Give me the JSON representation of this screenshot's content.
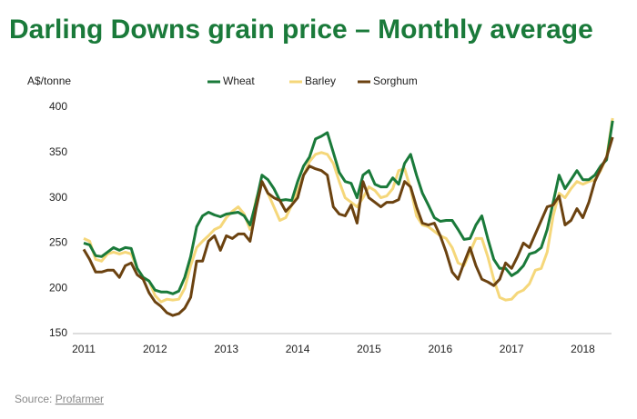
{
  "chart_data": {
    "type": "line",
    "title": "Darling Downs grain price – Monthly average",
    "y_label": "A$/tonne",
    "source_label": "Source:",
    "source_name": "Profarmer",
    "categories": [
      "2011",
      null,
      null,
      null,
      null,
      null,
      null,
      null,
      null,
      null,
      null,
      null,
      "2012",
      null,
      null,
      null,
      null,
      null,
      null,
      null,
      null,
      null,
      null,
      null,
      "2013",
      null,
      null,
      null,
      null,
      null,
      null,
      null,
      null,
      null,
      null,
      null,
      "2014",
      null,
      null,
      null,
      null,
      null,
      null,
      null,
      null,
      null,
      null,
      null,
      "2015",
      null,
      null,
      null,
      null,
      null,
      null,
      null,
      null,
      null,
      null,
      null,
      "2016",
      null,
      null,
      null,
      null,
      null,
      null,
      null,
      null,
      null,
      null,
      null,
      "2017",
      null,
      null,
      null,
      null,
      null,
      null,
      null,
      null,
      null,
      null,
      null,
      "2018",
      null,
      null,
      null,
      null,
      null
    ],
    "series": [
      {
        "name": "Wheat",
        "color": "#1a7a3a",
        "values": [
          250,
          248,
          236,
          235,
          240,
          245,
          242,
          245,
          244,
          222,
          212,
          208,
          198,
          196,
          196,
          194,
          197,
          212,
          235,
          268,
          280,
          284,
          281,
          279,
          282,
          283,
          284,
          280,
          270,
          295,
          325,
          320,
          310,
          297,
          298,
          297,
          318,
          335,
          345,
          365,
          368,
          372,
          350,
          328,
          318,
          316,
          300,
          325,
          330,
          315,
          312,
          312,
          322,
          315,
          338,
          348,
          325,
          305,
          292,
          278,
          274,
          275,
          275,
          265,
          254,
          255,
          270,
          280,
          255,
          232,
          222,
          222,
          214,
          218,
          225,
          238,
          240,
          245,
          265,
          295,
          325,
          310,
          320,
          330,
          320,
          320,
          325,
          335,
          342,
          385
        ]
      },
      {
        "name": "Barley",
        "color": "#f5d77a",
        "values": [
          255,
          252,
          232,
          230,
          238,
          240,
          238,
          240,
          238,
          222,
          212,
          208,
          192,
          185,
          188,
          187,
          188,
          200,
          225,
          245,
          252,
          258,
          265,
          268,
          278,
          285,
          290,
          282,
          265,
          298,
          318,
          305,
          290,
          275,
          278,
          292,
          308,
          325,
          340,
          348,
          350,
          348,
          338,
          318,
          300,
          295,
          290,
          300,
          312,
          308,
          300,
          302,
          310,
          330,
          332,
          310,
          280,
          270,
          268,
          263,
          258,
          255,
          245,
          228,
          225,
          240,
          255,
          255,
          235,
          210,
          190,
          187,
          188,
          195,
          198,
          205,
          220,
          222,
          240,
          280,
          305,
          300,
          310,
          318,
          315,
          318,
          320,
          330,
          345,
          388
        ]
      },
      {
        "name": "Sorghum",
        "color": "#6b4210",
        "values": [
          243,
          232,
          218,
          218,
          220,
          220,
          212,
          225,
          228,
          215,
          210,
          195,
          185,
          180,
          173,
          170,
          172,
          178,
          190,
          230,
          230,
          252,
          258,
          242,
          258,
          255,
          260,
          260,
          252,
          288,
          318,
          305,
          300,
          297,
          285,
          292,
          300,
          325,
          335,
          332,
          330,
          325,
          290,
          282,
          280,
          292,
          272,
          318,
          300,
          295,
          290,
          295,
          295,
          298,
          318,
          312,
          290,
          272,
          270,
          272,
          258,
          240,
          218,
          210,
          228,
          245,
          225,
          210,
          207,
          203,
          210,
          228,
          222,
          235,
          250,
          245,
          260,
          275,
          290,
          292,
          302,
          270,
          275,
          288,
          278,
          295,
          318,
          332,
          345,
          367
        ]
      }
    ],
    "ylim": [
      150,
      400
    ],
    "yticks": [
      150,
      200,
      250,
      300,
      350,
      400
    ],
    "grid": false
  }
}
